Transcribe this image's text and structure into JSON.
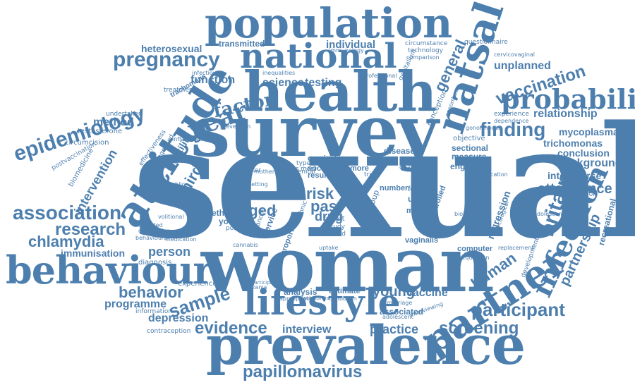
{
  "color": "#4d7fae",
  "words": {
    "sexual": "sexual",
    "survey": "survey",
    "woman": "woman",
    "health": "health",
    "population": "population",
    "prevalence": "prevalence",
    "national": "national",
    "attitude": "attitude",
    "behaviour": "behaviour",
    "lifestyle": "lifestyle",
    "partner": "partner",
    "natsal": "natsal",
    "infection": "infection",
    "probability": "probability",
    "pregnancy": "pregnancy",
    "epidemiology": "epidemiology",
    "year": "year",
    "association": "association",
    "research": "research",
    "chlamydia": "chlamydia",
    "finding": "finding",
    "vaccination": "vaccination",
    "britain": "britain",
    "participant": "participant",
    "screening": "screening",
    "papillomavirus": "papillomavirus",
    "sample": "sample",
    "behavior": "behavior",
    "evidence": "evidence",
    "attendance": "attendance",
    "factor": "factor",
    "general": "general",
    "human": "human",
    "partnership": "partnership",
    "intervention": "intervention",
    "third": "third",
    "aged": "aged",
    "risk": "risk",
    "past": "past",
    "drug": "drug",
    "young": "young",
    "vaccine": "vaccine",
    "practice": "practice",
    "interview": "interview",
    "depression": "depression",
    "programme": "programme",
    "person": "person",
    "immunisation": "immunisation",
    "heterosexual": "heterosexual",
    "transmitted": "transmitted",
    "individual": "individual",
    "function": "function",
    "science": "science",
    "testing": "testing",
    "method": "method",
    "testosterone": "testosterone",
    "circumcision": "circumcision",
    "infertility": "infertility",
    "diagnosis": "diagnosis",
    "unplanned": "unplanned",
    "relationship": "relationship",
    "mycoplasma": "mycoplasma",
    "trichomonas": "trichomonas",
    "conclusion": "conclusion",
    "background": "background",
    "intercourse": "intercourse",
    "regression": "regression",
    "recreational": "recreational",
    "experienced": "experienced",
    "analysis": "analysis",
    "estimate": "estimate",
    "ethnicity": "ethnicity",
    "younger": "younger",
    "measure": "measure",
    "england": "england",
    "sectional": "sectional",
    "objective": "objective",
    "disease": "disease",
    "cervical": "cervical",
    "social": "social",
    "result": "result",
    "data": "data",
    "more": "more",
    "number": "number",
    "unsafe": "unsafe",
    "medical": "medical",
    "female": "female",
    "controlled": "controlled",
    "associated": "associated",
    "computer": "computer",
    "vaginalis": "vaginalis",
    "trachomatis": "trachomatis",
    "treatment": "treatment",
    "undertaken": "undertaken",
    "biomedicine": "biomedicine",
    "postvaccination": "postvaccination",
    "effectiveness": "effectiveness",
    "technology": "technology",
    "circumstance": "circumstance",
    "questionnaire": "questionnaire",
    "comparison": "comparison",
    "conception": "conception",
    "cervicovaginal": "cervicovaginal",
    "experience": "experience",
    "dependence": "dependence",
    "interpretation": "interpretation",
    "adolescence": "adolescence",
    "development": "development",
    "replacement": "replacement",
    "acquisition": "acquisition",
    "education": "education",
    "gonorrhoea": "gonorrhoea",
    "marriage": "marriage",
    "caribbean": "caribbean",
    "information": "information",
    "contraception": "contraception",
    "tanzania": "tanzania",
    "cannabis": "cannabis",
    "uptake": "uptake",
    "trend": "trend",
    "study": "study",
    "report": "report",
    "gender": "gender",
    "trial": "trial",
    "group": "group",
    "clinic": "clinic",
    "higher": "higher",
    "change": "change",
    "northern": "northern",
    "type": "type",
    "genital": "genital",
    "most": "most",
    "status": "status",
    "marker": "marker",
    "public": "public",
    "sampling": "sampling",
    "common": "common",
    "schooling": "schooling",
    "volitional": "volitional",
    "molecular": "molecular",
    "deprivation": "deprivation",
    "behavioural": "behavioural",
    "adjusted": "adjusted",
    "medication": "medication",
    "positive": "positive",
    "inequalities": "inequalities",
    "professional": "professional",
    "infectious": "infectious",
    "diagnosed": "diagnosed",
    "prevention": "prevention",
    "inflammation": "inflammation",
    "setting": "setting",
    "participate": "participate",
    "appropriate": "appropriate",
    "substantial": "substantial",
    "adolescent": "adolescent",
    "interviewing": "interviewing",
    "proportion": "proportion",
    "mother": "mother",
    "cancer": "cancer",
    "service": "service",
    "ethnic": "ethnic",
    "ecological": "ecological",
    "biological": "biological",
    "immunology": "immunology",
    "genitalium": "genitalium",
    "gonorrhoeae": "gonorrhoeae"
  }
}
